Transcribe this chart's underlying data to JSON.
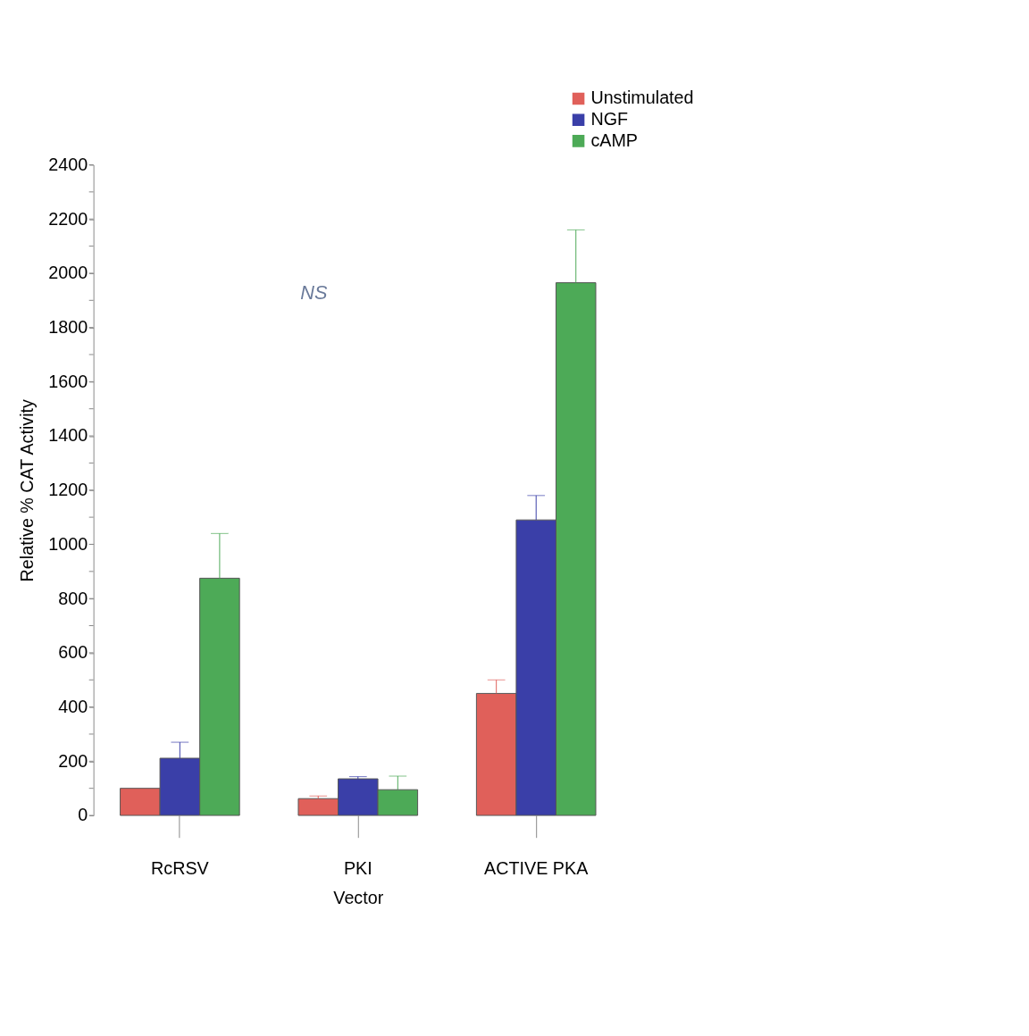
{
  "chart_data": {
    "type": "bar",
    "xlabel": "Vector",
    "ylabel": "Relative % CAT Activity",
    "categories": [
      "RcRSV",
      "PKI",
      "ACTIVE PKA"
    ],
    "series": [
      {
        "name": "Unstimulated",
        "color": "#e0605a",
        "values": [
          100,
          62,
          450
        ],
        "errors": [
          null,
          [
            62,
            72
          ],
          [
            450,
            500
          ]
        ]
      },
      {
        "name": "NGF",
        "color": "#3a3fa8",
        "values": [
          211,
          135,
          1090
        ],
        "errors": [
          [
            211,
            270
          ],
          [
            135,
            143
          ],
          [
            1090,
            1180
          ]
        ]
      },
      {
        "name": "cAMP",
        "color": "#4daa57",
        "values": [
          875,
          95,
          1965
        ],
        "errors": [
          [
            875,
            1040
          ],
          [
            95,
            145
          ],
          [
            1965,
            2160
          ]
        ]
      }
    ],
    "ylim": [
      0,
      2400
    ],
    "yticks": [
      0,
      {
        "value": 100,
        "label": null
      },
      200,
      {
        "value": 300,
        "label": null
      },
      400,
      {
        "value": 500,
        "label": null
      },
      600,
      {
        "value": 700,
        "label": null
      },
      800,
      {
        "value": 900,
        "label": null
      },
      1000,
      {
        "value": 1100,
        "label": null
      },
      1200,
      {
        "value": 1300,
        "label": null
      },
      1400,
      {
        "value": 1500,
        "label": null
      },
      1600,
      {
        "value": 1700,
        "label": null
      },
      1800,
      {
        "value": 1900,
        "label": null
      },
      2000,
      {
        "value": 2100,
        "label": null
      },
      2200,
      {
        "value": 2300,
        "label": null
      },
      2400
    ],
    "grid": false,
    "legend": "top right",
    "annotations": [
      "NS"
    ]
  }
}
